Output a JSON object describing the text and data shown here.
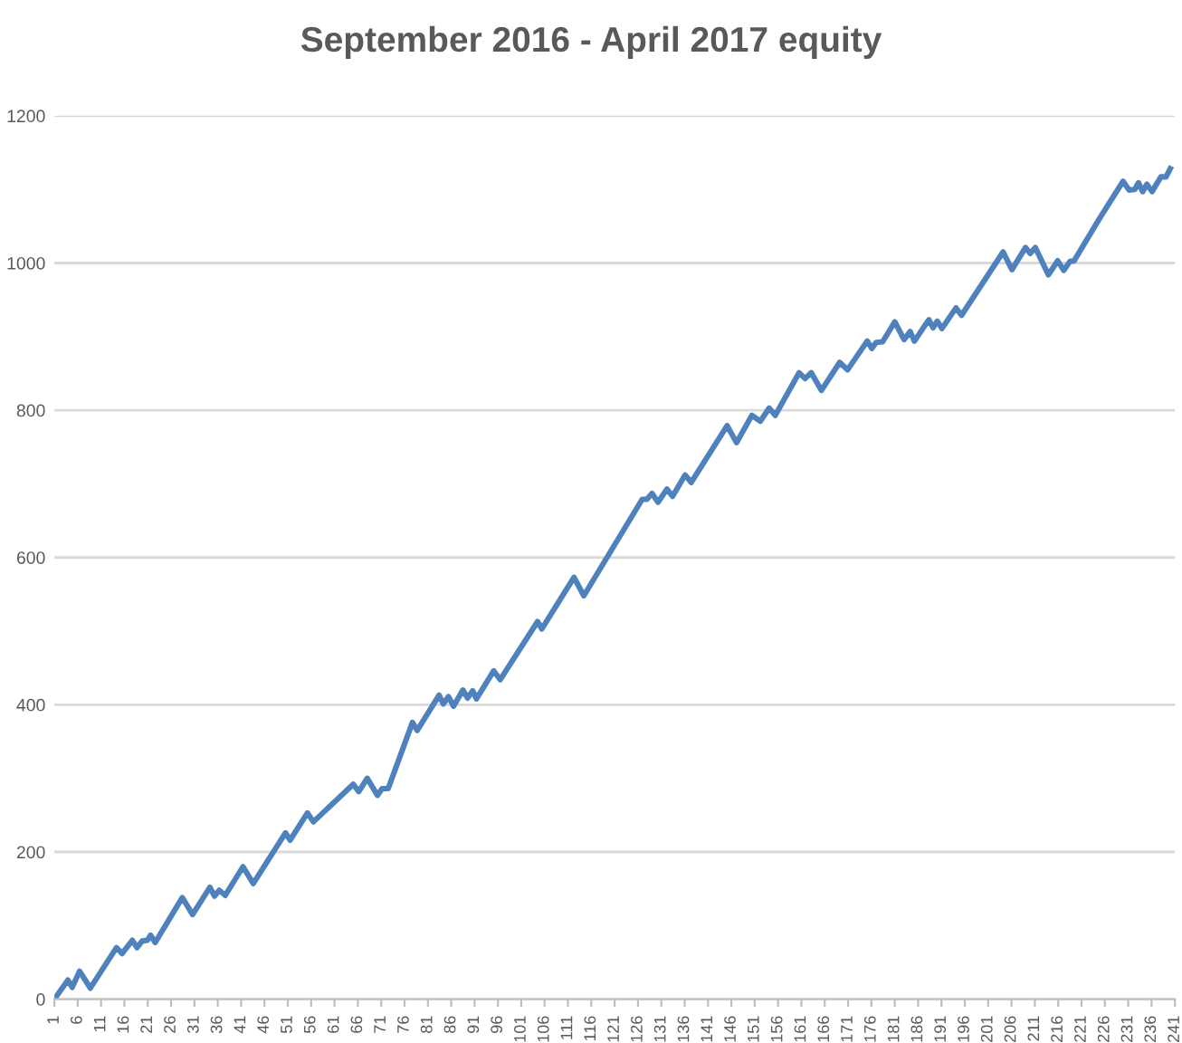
{
  "chart_data": {
    "type": "line",
    "title": "September 2016 - April 2017 equity",
    "xlim": [
      1,
      241
    ],
    "xticks": [
      1,
      6,
      11,
      16,
      21,
      26,
      31,
      36,
      41,
      46,
      51,
      56,
      61,
      66,
      71,
      76,
      81,
      86,
      91,
      96,
      101,
      106,
      111,
      116,
      121,
      126,
      131,
      136,
      141,
      146,
      151,
      156,
      161,
      166,
      171,
      176,
      181,
      186,
      191,
      196,
      201,
      206,
      211,
      216,
      221,
      226,
      231,
      236,
      241
    ],
    "ylim": [
      0,
      1200
    ],
    "yticks": [
      0,
      200,
      400,
      600,
      800,
      1000,
      1200
    ],
    "grid": "y",
    "legend": false,
    "marker": "none",
    "line_style": "solid",
    "series": [
      {
        "color": "#4f81bd",
        "x": [
          1,
          3.9,
          4.8,
          6.4,
          8.7,
          14.3,
          15.5,
          17.7,
          18.7,
          19.8,
          20.9,
          21.6,
          22.6,
          28.4,
          30.6,
          34.3,
          35.3,
          36.3,
          37.6,
          41.4,
          43.6,
          50.5,
          51.5,
          55.2,
          56.5,
          65,
          66.2,
          68,
          70.2,
          71.2,
          72.5,
          77.7,
          78.7,
          83.4,
          84.3,
          85.4,
          86.5,
          88.5,
          89.5,
          90.6,
          91.4,
          95.1,
          96.5,
          104.5,
          105.4,
          112.3,
          114.4,
          126.9,
          127.9,
          129,
          130.3,
          132.2,
          133.4,
          136.1,
          137.4,
          145.1,
          147.1,
          150.4,
          152.2,
          154.1,
          155.4,
          160.5,
          161.8,
          163.1,
          165.3,
          169.2,
          170.9,
          175.1,
          176.1,
          177,
          178.4,
          181,
          183,
          184.3,
          185.2,
          188.3,
          189.2,
          190.1,
          191.1,
          194.1,
          195.3,
          204.2,
          206.1,
          209,
          210,
          211.1,
          213.9,
          215.9,
          217.2,
          218.5,
          219.4,
          225,
          229.9,
          231.2,
          232.4,
          233.2,
          234.1,
          235,
          236.1,
          238,
          239.1,
          240
        ],
        "values": [
          0,
          26,
          16,
          38,
          15,
          70,
          62,
          80,
          70,
          79,
          80,
          87,
          77,
          138,
          115,
          152,
          140,
          148,
          141,
          180,
          157,
          226,
          216,
          253,
          241,
          292,
          282,
          300,
          277,
          286,
          286,
          376,
          365,
          413,
          401,
          411,
          398,
          420,
          409,
          419,
          408,
          446,
          434,
          513,
          503,
          573,
          548,
          679,
          679,
          687,
          675,
          693,
          683,
          712,
          702,
          779,
          756,
          793,
          785,
          803,
          793,
          851,
          843,
          851,
          827,
          865,
          855,
          894,
          884,
          892,
          893,
          920,
          896,
          907,
          894,
          923,
          912,
          921,
          911,
          939,
          929,
          1015,
          991,
          1021,
          1013,
          1021,
          984,
          1003,
          990,
          1002,
          1003,
          1062,
          1111,
          1099,
          1100,
          1109,
          1097,
          1107,
          1097,
          1117,
          1117,
          1128
        ]
      }
    ]
  }
}
